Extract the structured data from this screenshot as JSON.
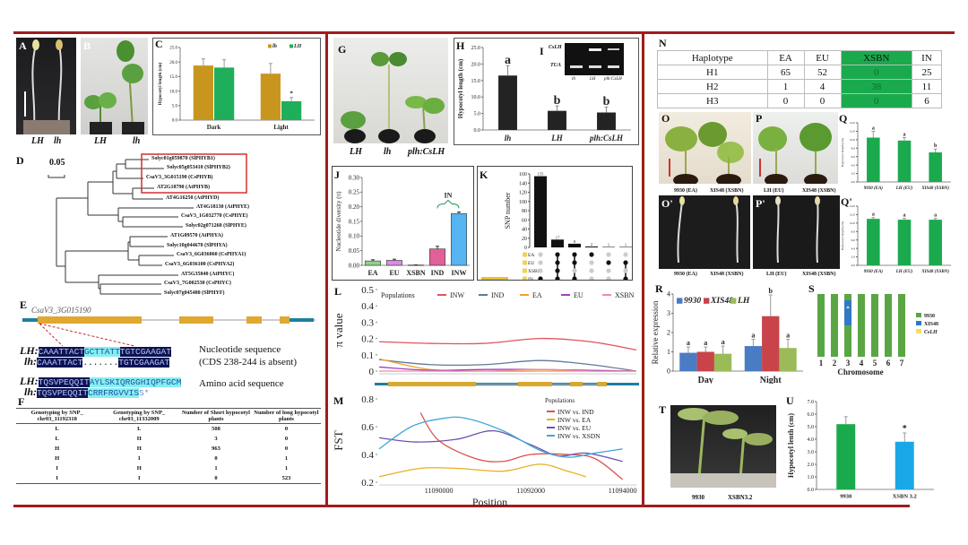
{
  "panel_labels": {
    "A": "A",
    "B": "B",
    "C": "C",
    "D": "D",
    "E": "E",
    "F": "F",
    "G": "G",
    "H": "H",
    "I": "I",
    "J": "J",
    "K": "K",
    "L": "L",
    "M": "M",
    "N": "N",
    "O": "O",
    "P": "P",
    "Q": "Q",
    "O2": "O'",
    "P2": "P'",
    "Q2": "Q'",
    "R": "R",
    "S": "S",
    "T": "T",
    "U": "U"
  },
  "A": {
    "labels": [
      "LH",
      "lh"
    ]
  },
  "B": {
    "labels": [
      "LH",
      "lh"
    ]
  },
  "G": {
    "labels": [
      "LH",
      "lh",
      "plh:CsLH"
    ]
  },
  "I": {
    "rows": [
      "CsLH",
      "TUA"
    ],
    "lanes": [
      "lh",
      "LH",
      "plh:CsLH"
    ]
  },
  "O": {
    "labels": [
      "9930 (EA)",
      "XIS48 (XSBN)"
    ]
  },
  "P": {
    "labels": [
      "LH (EU)",
      "XIS48 (XSBN)"
    ]
  },
  "O2": {
    "labels": [
      "9930 (EA)",
      "XIS48 (XSBN)"
    ]
  },
  "P2": {
    "labels": [
      "LH (EU)",
      "XIS48 (XSBN)"
    ]
  },
  "T": {
    "labels": [
      "9930",
      "XSBN3.2"
    ]
  },
  "D": {
    "scale": "0.05",
    "leaves": [
      "Solyc01g059870 (SlPHYB1)",
      "Solyc05g053410 (SlPHYB2)",
      "CsaV3_3G015190 (CsPHYB)",
      "AT2G18790 (AtPHYB)",
      "AT4G16250 (AtPHYD)",
      "AT4G18130 (AtPHYE)",
      "CsaV3_1G032770 (CsPHYE)",
      "Solyc02g071260 (SlPHYE)",
      "AT1G09570 (AtPHYA)",
      "Solyc10g044670 (SlPHYA)",
      "CsaV3_6G036060 (CsPHYA1)",
      "CsaV3_6G036100 (CsPHYA2)",
      "AT5G35840 (AtPHYC)",
      "CsaV3_7G002530 (CsPHYC)",
      "Solyc07g045480 (SlPHYF)"
    ]
  },
  "E": {
    "gene": "CsaV3_3G015190",
    "nt_LH": {
      "label": "LH:",
      "a": "CAAATTACT",
      "b": "GCTTATT",
      "c": "TGTCGAAGAT"
    },
    "nt_lh": {
      "label": "lh:",
      "a": "CAAATTACT",
      "b": ".......",
      "c": "TGTCGAAGAT"
    },
    "aa_LH": {
      "label": "LH:",
      "a": "TQSVPEQQIT",
      "b": "AYLSKIQRGGHIQPFGCM"
    },
    "aa_lh": {
      "label": "lh:",
      "a": "TQSVPEQQIT",
      "b": "CRRFRGVVIS",
      "c": "S*"
    },
    "nt_note1": "Nucleotide sequence",
    "nt_note2": "(CDS 238-244 is absent)",
    "aa_note": "Amino acid sequence"
  },
  "F": {
    "headers": [
      "Genotyping by SNP_ chr03_11192318",
      "Genotyping by SNP_ chr03_11332009",
      "Number of Short hypocotyl plants",
      "Number of long hypocotyl plants"
    ],
    "rows": [
      [
        "L",
        "L",
        "508",
        "0"
      ],
      [
        "L",
        "H",
        "3",
        "0"
      ],
      [
        "H",
        "H",
        "963",
        "0"
      ],
      [
        "H",
        "I",
        "0",
        "1"
      ],
      [
        "I",
        "H",
        "1",
        "1"
      ],
      [
        "I",
        "I",
        "0",
        "523"
      ]
    ]
  },
  "N": {
    "headers": [
      "Haplotype",
      "EA",
      "EU",
      "XSBN",
      "IN"
    ],
    "rows": [
      [
        "H1",
        "65",
        "52",
        "0",
        "25"
      ],
      [
        "H2",
        "1",
        "4",
        "38",
        "11"
      ],
      [
        "H3",
        "0",
        "0",
        "0",
        "6"
      ]
    ],
    "highlight_color": "#1aaa4d"
  },
  "chart_data": [
    {
      "id": "C",
      "type": "bar",
      "categories": [
        "Dark",
        "Light"
      ],
      "ylabel": "Hypocotyl length (cm)",
      "ylim": [
        0,
        25
      ],
      "yticks": [
        "0.0",
        "5.0",
        "10.0",
        "15.0",
        "20.0",
        "25.0"
      ],
      "legend_position": "top-right",
      "series": [
        {
          "name": "lh",
          "values": [
            18.8,
            16.0
          ],
          "errors": [
            2.3,
            3.5
          ],
          "color": "#c8961e"
        },
        {
          "name": "LH",
          "values": [
            18.1,
            6.5
          ],
          "errors": [
            2.7,
            1.3
          ],
          "letters": [
            "",
            "*"
          ],
          "color": "#1fae5a"
        }
      ]
    },
    {
      "id": "H",
      "type": "bar",
      "categories": [
        "lh",
        "LH",
        "plh:CsLH"
      ],
      "ylabel": "Hypocotyl length (cm)",
      "ylim": [
        0,
        25
      ],
      "yticks": [
        "0.0",
        "5.0",
        "10.0",
        "15.0",
        "20.0",
        "25.0"
      ],
      "series": [
        {
          "values": [
            16.5,
            5.8,
            5.3
          ],
          "errors": [
            3.0,
            1.5,
            1.7
          ],
          "letters": [
            "a",
            "b",
            "b"
          ],
          "color": "#232323"
        }
      ]
    },
    {
      "id": "J",
      "type": "bar",
      "categories": [
        "EA",
        "EU",
        "XSBN",
        "IND",
        "INW"
      ],
      "ylabel": "Nucleotide diversity (π)",
      "ylim": [
        0,
        0.3
      ],
      "yticks": [
        "0.00",
        "0.05",
        "0.10",
        "0.15",
        "0.20",
        "0.25",
        "0.30"
      ],
      "annotation": "IN",
      "series": [
        {
          "values": [
            0.015,
            0.017,
            0.001,
            0.056,
            0.177
          ],
          "errors": [
            0.004,
            0.004,
            0.0005,
            0.009,
            0.005
          ],
          "colors": [
            "#8fd18a",
            "#d88ee0",
            "#888888",
            "#e0609a",
            "#56b4f0"
          ]
        }
      ]
    },
    {
      "id": "K",
      "type": "upset",
      "ylabel": "SNP number",
      "ylim": [
        0,
        160
      ],
      "yticks": [
        "0",
        "20",
        "40",
        "60",
        "80",
        "100",
        "120",
        "140",
        "160"
      ],
      "sets": [
        "EA",
        "EU",
        "XSBN",
        "IN"
      ],
      "intersections": [
        {
          "value": 155,
          "label": "155",
          "members": [
            "IN"
          ]
        },
        {
          "value": 17,
          "label": "17",
          "members": [
            "EA",
            "EU",
            "XSBN",
            "IN"
          ]
        },
        {
          "value": 8,
          "label": "8",
          "members": [
            "EA",
            "EU",
            "IN"
          ]
        },
        {
          "value": 2,
          "label": "2",
          "members": [
            "EA"
          ]
        },
        {
          "value": 1,
          "label": "1",
          "members": [
            "EU"
          ]
        },
        {
          "value": 1,
          "label": "1",
          "members": [
            "EU",
            "IN"
          ]
        }
      ]
    },
    {
      "id": "L",
      "type": "line",
      "ylabel": "π value",
      "ylim": [
        0,
        0.5
      ],
      "yticks": [
        "0",
        "0.1",
        "0.2",
        "0.3",
        "0.4",
        "0.5"
      ],
      "xlim": [
        11088700,
        11094300
      ],
      "legend_title": "Populations",
      "legend_position": "top",
      "x": [
        11088700,
        11089800,
        11091000,
        11092200,
        11093300,
        11094300
      ],
      "series": [
        {
          "name": "INW",
          "color": "#e0555a",
          "values": [
            0.18,
            0.17,
            0.17,
            0.2,
            0.18,
            0.13
          ]
        },
        {
          "name": "IND",
          "color": "#5e7a9a",
          "values": [
            0.07,
            0.04,
            0.04,
            0.065,
            0.04,
            0.0
          ]
        },
        {
          "name": "EA",
          "color": "#f0a030",
          "values": [
            0.075,
            0.01,
            0.0,
            0.0,
            0.0,
            0.0
          ]
        },
        {
          "name": "EU",
          "color": "#a040c0",
          "values": [
            0.025,
            0.005,
            0.01,
            0.01,
            0.005,
            0.0
          ]
        },
        {
          "name": "XSBN",
          "color": "#f08aa0",
          "values": [
            0.0,
            0.0,
            0.0,
            0.01,
            0.0,
            0.0
          ]
        }
      ]
    },
    {
      "id": "M",
      "type": "line",
      "ylabel": "FST",
      "xlabel": "Position",
      "ylim": [
        0.2,
        0.8
      ],
      "yticks": [
        "0.2",
        "0.4",
        "0.6",
        "0.8"
      ],
      "xlim": [
        11088700,
        11094300
      ],
      "xticks": [
        "11090000",
        "11092000",
        "11094000"
      ],
      "legend_title": "Populations",
      "legend_position": "top-right",
      "series": [
        {
          "name": "INW vs. IND",
          "color": "#d9534f",
          "x": [
            11089600,
            11090000,
            11090800,
            11091400,
            11092000,
            11092800,
            11093400,
            11094000
          ],
          "values": [
            0.7,
            0.5,
            0.37,
            0.35,
            0.4,
            0.4,
            0.37,
            0.22
          ]
        },
        {
          "name": "INW vs. EA",
          "color": "#e8b020",
          "x": [
            11088700,
            11089600,
            11090400,
            11091400,
            11092200,
            11092800,
            11093200
          ],
          "values": [
            0.24,
            0.3,
            0.3,
            0.28,
            0.33,
            0.28,
            0.24
          ]
        },
        {
          "name": "INW vs. EU",
          "color": "#7050b0",
          "x": [
            11088700,
            11089500,
            11090400,
            11091200,
            11092000,
            11092600,
            11093200,
            11094000
          ],
          "values": [
            0.52,
            0.49,
            0.51,
            0.57,
            0.47,
            0.39,
            0.41,
            0.35
          ]
        },
        {
          "name": "INW vs. XSDN",
          "color": "#40a8d8",
          "x": [
            11088700,
            11089400,
            11090100,
            11090600,
            11091400,
            11092200,
            11092800,
            11093400,
            11094000
          ],
          "values": [
            0.44,
            0.6,
            0.66,
            0.66,
            0.57,
            0.43,
            0.38,
            0.41,
            0.44
          ]
        }
      ]
    },
    {
      "id": "Q",
      "type": "bar",
      "categories": [
        "9930 (EA)",
        "LH (EU)",
        "XIS48 (XSBN)"
      ],
      "ylabel": "Hypocotyl length (cm)",
      "ylim": [
        0,
        14
      ],
      "yticks": [
        "0.0",
        "2.0",
        "4.0",
        "6.0",
        "8.0",
        "10.0",
        "12.0",
        "14.0"
      ],
      "series": [
        {
          "values": [
            10.5,
            9.8,
            7.0
          ],
          "errors": [
            1.5,
            0.7,
            0.8
          ],
          "letters": [
            "a",
            "a",
            "b"
          ],
          "color": "#1aaa4d"
        }
      ]
    },
    {
      "id": "Q2",
      "type": "bar",
      "categories": [
        "9930 (EA)",
        "LH (EU)",
        "XIS48 (XSBN)"
      ],
      "ylabel": "Hypocotyl length (cm)",
      "ylim": [
        0,
        14
      ],
      "yticks": [
        "0.0",
        "2.0",
        "4.0",
        "6.0",
        "8.0",
        "10.0",
        "12.0",
        "14.0"
      ],
      "series": [
        {
          "values": [
            11.0,
            10.8,
            10.8
          ],
          "errors": [
            0.3,
            0.3,
            0.3
          ],
          "letters": [
            "a",
            "a",
            "a"
          ],
          "color": "#1aaa4d"
        }
      ]
    },
    {
      "id": "R",
      "type": "bar",
      "categories": [
        "Day",
        "Night"
      ],
      "ylabel": "Relative expression",
      "ylim": [
        0,
        4
      ],
      "yticks": [
        "0",
        "1",
        "2",
        "3",
        "4"
      ],
      "legend_position": "top-left",
      "series": [
        {
          "name": "9930",
          "values": [
            0.95,
            1.3
          ],
          "errors": [
            0.3,
            0.35
          ],
          "letters": [
            "a",
            "a"
          ],
          "color": "#4a7cc4"
        },
        {
          "name": "XIS48",
          "values": [
            1.0,
            2.85
          ],
          "errors": [
            0.25,
            1.1
          ],
          "letters": [
            "a",
            "b"
          ],
          "color": "#c8444a"
        },
        {
          "name": "LH",
          "values": [
            0.9,
            1.2
          ],
          "errors": [
            0.4,
            0.45
          ],
          "letters": [
            "a",
            "a"
          ],
          "color": "#9bbb59"
        }
      ]
    },
    {
      "id": "S",
      "type": "chromosome",
      "xlabel": "Chromosome",
      "categories": [
        "1",
        "2",
        "3",
        "4",
        "5",
        "6",
        "7"
      ],
      "introgression": {
        "chromosome": "3",
        "start": 0.1,
        "end": 0.5
      },
      "legend": [
        {
          "name": "9930",
          "color": "#5aa645"
        },
        {
          "name": "XIS48",
          "color": "#2f78c8"
        },
        {
          "name": "CsLH",
          "color": "#f0e060"
        }
      ]
    },
    {
      "id": "U",
      "type": "bar",
      "categories": [
        "9930",
        "XSBN 3.2"
      ],
      "ylabel": "Hypocotyl lenth (cm)",
      "ylim": [
        0,
        7
      ],
      "yticks": [
        "0.0",
        "1.0",
        "2.0",
        "3.0",
        "4.0",
        "5.0",
        "6.0",
        "7.0"
      ],
      "series": [
        {
          "values": [
            5.2,
            3.8
          ],
          "errors": [
            0.6,
            0.7
          ],
          "letters": [
            "",
            "*"
          ],
          "colors": [
            "#1aaa4d",
            "#1aa7e8"
          ]
        }
      ]
    }
  ]
}
